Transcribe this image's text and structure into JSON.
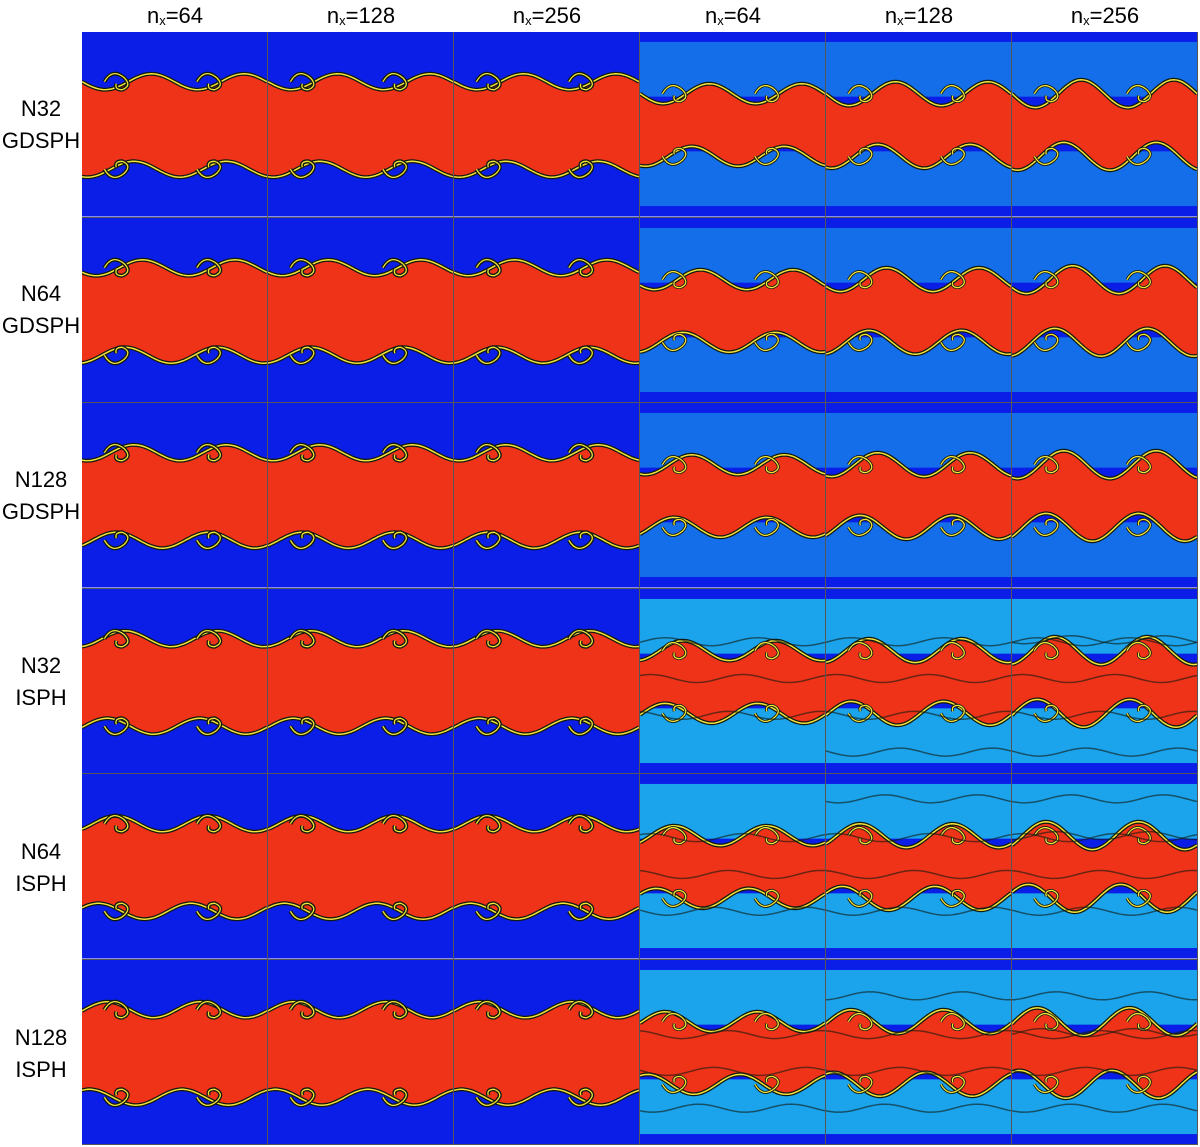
{
  "columns": [
    {
      "base": "n",
      "sub": "x",
      "value": "=64"
    },
    {
      "base": "n",
      "sub": "x",
      "value": "=128"
    },
    {
      "base": "n",
      "sub": "x",
      "value": "=256"
    },
    {
      "base": "n",
      "sub": "x",
      "value": "=64"
    },
    {
      "base": "n",
      "sub": "x",
      "value": "=128"
    },
    {
      "base": "n",
      "sub": "x",
      "value": "=256"
    }
  ],
  "rows": [
    {
      "line1": "N32",
      "line2": "GDSPH"
    },
    {
      "line1": "N64",
      "line2": "GDSPH"
    },
    {
      "line1": "N128",
      "line2": "GDSPH"
    },
    {
      "line1": "N32",
      "line2": "ISPH"
    },
    {
      "line1": "N64",
      "line2": "ISPH"
    },
    {
      "line1": "N128",
      "line2": "ISPH"
    }
  ],
  "colors": {
    "background_fluid": "#0a1ee8",
    "dense_band": "#ee3318",
    "interface_yellow": "#f2e23a",
    "interface_dark": "#101a10",
    "mixing_cyan": "#22d0ee"
  }
}
